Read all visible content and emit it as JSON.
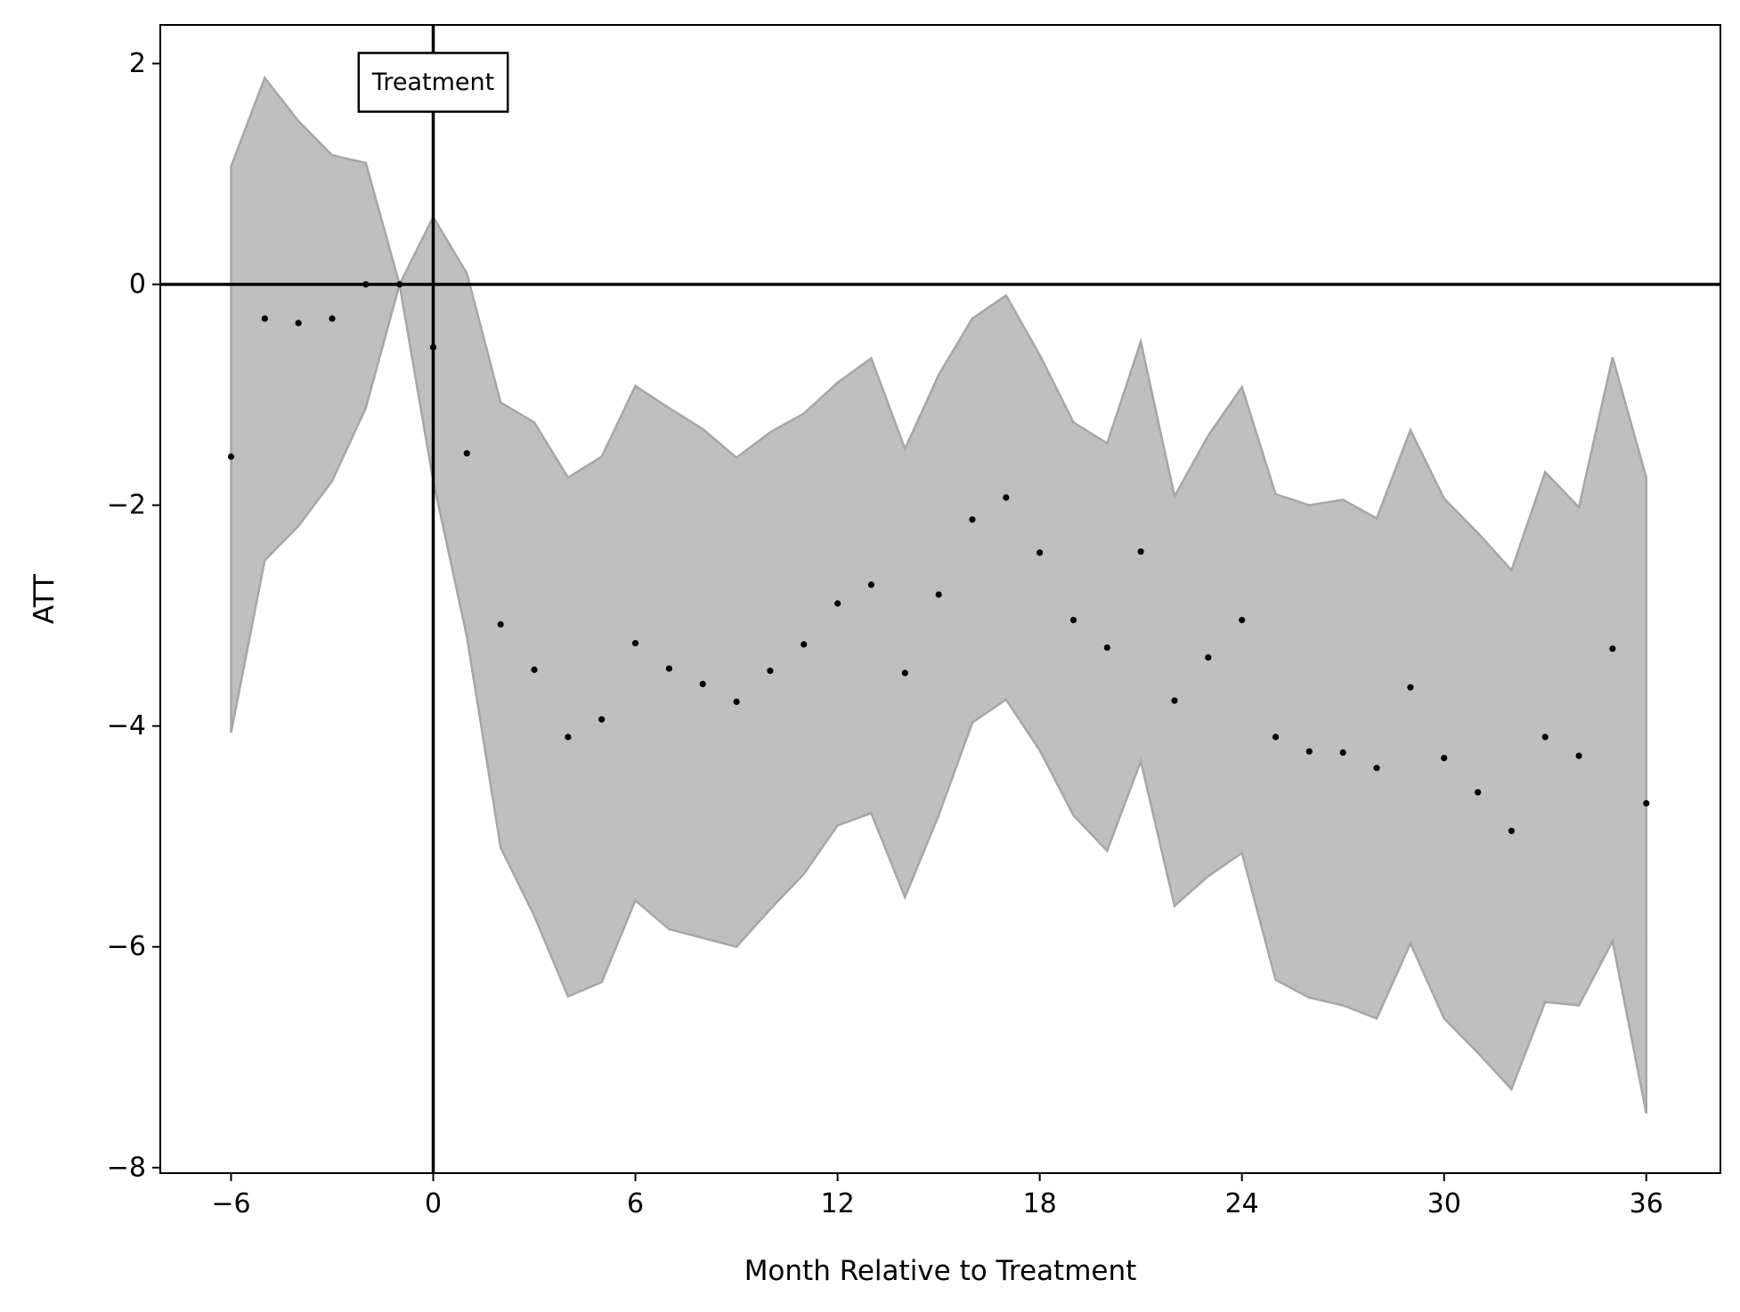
{
  "chart_data": {
    "type": "scatter",
    "title": "",
    "xlabel": "Month Relative to Treatment",
    "ylabel": "ATT",
    "xlim": [
      -8.1,
      38.2
    ],
    "ylim": [
      -8.05,
      2.35
    ],
    "xticks": [
      -6,
      0,
      6,
      12,
      18,
      24,
      30,
      36
    ],
    "yticks": [
      2,
      0,
      -2,
      -4,
      -6,
      -8
    ],
    "xtick_labels": [
      "−6",
      "0",
      "6",
      "12",
      "18",
      "24",
      "30",
      "36"
    ],
    "ytick_labels": [
      "2",
      "0",
      "−2",
      "−4",
      "−6",
      "−8"
    ],
    "grid": false,
    "reference_lines": {
      "horizontal_y": 0,
      "vertical_x": 0
    },
    "annotation": {
      "text": "Treatment",
      "x": 0,
      "y": 1.83
    },
    "colors": {
      "band": "#bfbfbf",
      "band_edge": "#a6a6a6",
      "points": "#000000",
      "lines": "#000000"
    },
    "x": [
      -6,
      -5,
      -4,
      -3,
      -2,
      -1,
      0,
      1,
      2,
      3,
      4,
      5,
      6,
      7,
      8,
      9,
      10,
      11,
      12,
      13,
      14,
      15,
      16,
      17,
      18,
      19,
      20,
      21,
      22,
      23,
      24,
      25,
      26,
      27,
      28,
      29,
      30,
      31,
      32,
      33,
      34,
      35,
      36
    ],
    "series": [
      {
        "values": [
          -1.56,
          -0.31,
          -0.35,
          -0.31,
          0.0,
          0.0,
          -0.57,
          -1.53,
          -3.08,
          -3.49,
          -4.1,
          -3.94,
          -3.25,
          -3.48,
          -3.62,
          -3.78,
          -3.5,
          -3.26,
          -2.89,
          -2.72,
          -3.52,
          -2.81,
          -2.13,
          -1.93,
          -2.43,
          -3.04,
          -3.29,
          -2.42,
          -3.77,
          -3.38,
          -3.04,
          -4.1,
          -4.23,
          -4.24,
          -4.38,
          -3.65,
          -4.29,
          -4.6,
          -4.95,
          -4.1,
          -4.27,
          -3.3,
          -4.7
        ]
      }
    ],
    "band": {
      "upper": [
        1.07,
        1.87,
        1.48,
        1.17,
        1.1,
        0.0,
        0.61,
        0.1,
        -1.07,
        -1.25,
        -1.75,
        -1.56,
        -0.92,
        -1.12,
        -1.31,
        -1.57,
        -1.34,
        -1.17,
        -0.89,
        -0.67,
        -1.49,
        -0.82,
        -0.31,
        -0.1,
        -0.64,
        -1.25,
        -1.44,
        -0.52,
        -1.92,
        -1.37,
        -0.93,
        -1.9,
        -2.0,
        -1.95,
        -2.12,
        -1.32,
        -1.94,
        -2.25,
        -2.59,
        -1.7,
        -2.02,
        -0.66,
        -1.75
      ],
      "lower": [
        -4.06,
        -2.5,
        -2.19,
        -1.78,
        -1.12,
        0.0,
        -1.78,
        -3.19,
        -5.1,
        -5.72,
        -6.45,
        -6.32,
        -5.58,
        -5.84,
        -5.92,
        -6.0,
        -5.66,
        -5.34,
        -4.9,
        -4.79,
        -5.55,
        -4.81,
        -3.97,
        -3.76,
        -4.22,
        -4.81,
        -5.13,
        -4.32,
        -5.63,
        -5.36,
        -5.15,
        -6.3,
        -6.46,
        -6.53,
        -6.65,
        -5.97,
        -6.65,
        -6.96,
        -7.29,
        -6.5,
        -6.53,
        -5.95,
        -7.51
      ]
    }
  }
}
